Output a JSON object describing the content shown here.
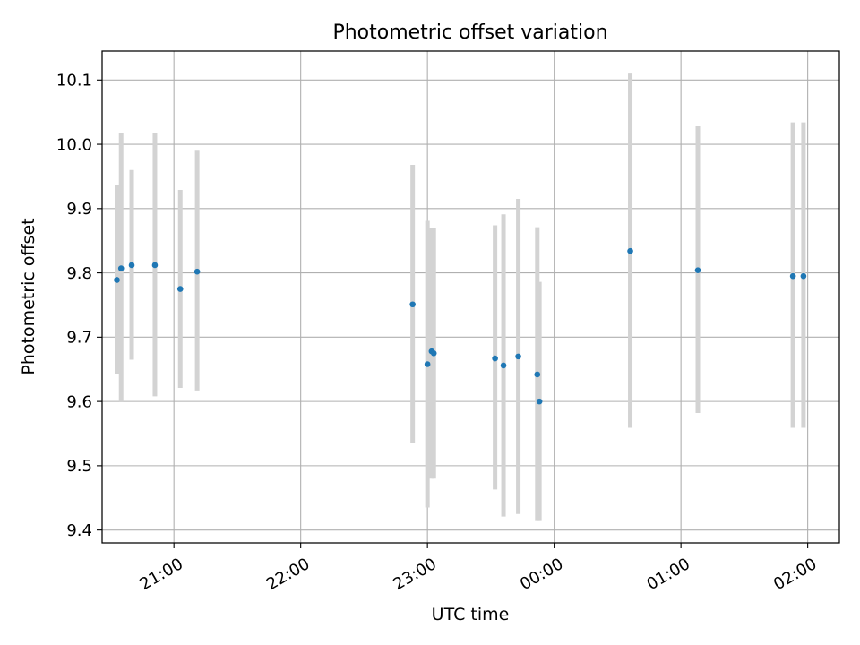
{
  "chart_data": {
    "type": "scatter",
    "title": "Photometric offset variation",
    "xlabel": "UTC time",
    "ylabel": "Photometric offset",
    "x_axis": {
      "kind": "time",
      "range": [
        "20:26",
        "02:15"
      ],
      "ticks": [
        {
          "time": "21:00",
          "label": "21:00"
        },
        {
          "time": "22:00",
          "label": "22:00"
        },
        {
          "time": "23:00",
          "label": "23:00"
        },
        {
          "time": "00:00",
          "label": "00:00"
        },
        {
          "time": "01:00",
          "label": "01:00"
        },
        {
          "time": "02:00",
          "label": "02:00"
        }
      ]
    },
    "y_axis": {
      "range": [
        9.38,
        10.145
      ],
      "ticks": [
        9.4,
        9.5,
        9.6,
        9.7,
        9.8,
        9.9,
        10.0,
        10.1
      ],
      "tick_labels": [
        "9.4",
        "9.5",
        "9.6",
        "9.7",
        "9.8",
        "9.9",
        "10.0",
        "10.1"
      ]
    },
    "grid": true,
    "marker_color": "#1f77b4",
    "errorbar_color": "#d3d3d3",
    "points": [
      {
        "time": "20:33",
        "y": 9.789,
        "low": 9.642,
        "high": 9.937
      },
      {
        "time": "20:35",
        "y": 9.807,
        "low": 9.6,
        "high": 10.018
      },
      {
        "time": "20:40",
        "y": 9.812,
        "low": 9.665,
        "high": 9.96
      },
      {
        "time": "20:51",
        "y": 9.812,
        "low": 9.608,
        "high": 10.018
      },
      {
        "time": "21:03",
        "y": 9.775,
        "low": 9.621,
        "high": 9.929
      },
      {
        "time": "21:11",
        "y": 9.802,
        "low": 9.617,
        "high": 9.99
      },
      {
        "time": "22:53",
        "y": 9.751,
        "low": 9.535,
        "high": 9.968
      },
      {
        "time": "23:00",
        "y": 9.658,
        "low": 9.435,
        "high": 9.881
      },
      {
        "time": "23:02",
        "y": 9.678,
        "low": 9.48,
        "high": 9.87
      },
      {
        "time": "23:03",
        "y": 9.675,
        "low": 9.48,
        "high": 9.87
      },
      {
        "time": "23:32",
        "y": 9.667,
        "low": 9.463,
        "high": 9.874
      },
      {
        "time": "23:36",
        "y": 9.656,
        "low": 9.421,
        "high": 9.891
      },
      {
        "time": "23:43",
        "y": 9.67,
        "low": 9.425,
        "high": 9.915
      },
      {
        "time": "23:52",
        "y": 9.642,
        "low": 9.414,
        "high": 9.871
      },
      {
        "time": "23:53",
        "y": 9.6,
        "low": 9.414,
        "high": 9.786
      },
      {
        "time": "00:36",
        "y": 9.834,
        "low": 9.559,
        "high": 10.11
      },
      {
        "time": "01:08",
        "y": 9.804,
        "low": 9.582,
        "high": 10.028
      },
      {
        "time": "01:53",
        "y": 9.795,
        "low": 9.559,
        "high": 10.034
      },
      {
        "time": "01:58",
        "y": 9.795,
        "low": 9.559,
        "high": 10.034
      }
    ]
  }
}
